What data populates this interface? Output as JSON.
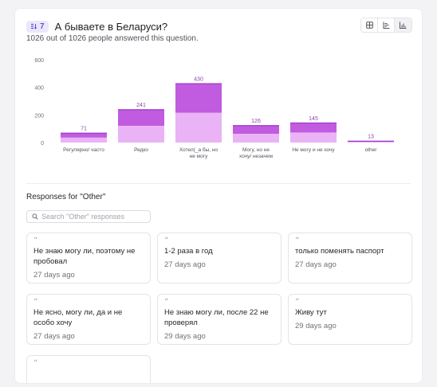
{
  "question": {
    "number": "7",
    "title": "А бываете в Беларуси?",
    "answered_text": "1026 out of 1026 people answered this question."
  },
  "colors": {
    "bar_top": "#c15be0",
    "bar_bottom": "#e9b3f5",
    "bar_edge": "#a23fcf",
    "badge_bg": "#ece8fb",
    "badge_fg": "#6b4fd8"
  },
  "chart_data": {
    "type": "bar",
    "categories": [
      "Регулярно/ часто",
      "Редко",
      "Хотел(_а бы, но не могу",
      "Могу, но не хочу/ незачем",
      "Не могу и не хочу",
      "other"
    ],
    "values": [
      71,
      241,
      430,
      126,
      145,
      13
    ],
    "value_labels": [
      "71",
      "241",
      "430",
      "126",
      "145",
      "13"
    ],
    "yticks": [
      "0",
      "200",
      "400",
      "600"
    ],
    "ylim": [
      0,
      600
    ],
    "grid": false,
    "legend": "none"
  },
  "other_section": {
    "title": "Responses for \"Other\"",
    "search_placeholder": "Search \"Other\" responses",
    "responses": [
      {
        "text": "Не знаю могу ли, поэтому не пробовал",
        "date": "27 days ago"
      },
      {
        "text": "1-2 раза в год",
        "date": "27 days ago"
      },
      {
        "text": "только поменять паспорт",
        "date": "27 days ago"
      },
      {
        "text": "Не ясно, могу ли, да и не особо хочу",
        "date": "27 days ago"
      },
      {
        "text": "Не знаю могу ли, после 22 не проверял",
        "date": "29 days ago"
      },
      {
        "text": "Живу тут",
        "date": "29 days ago"
      },
      {
        "text": "",
        "date": ""
      }
    ]
  },
  "icons": {
    "question_type": "list-sort-icon",
    "view_table": "table-icon",
    "view_horizontal": "horizontal-bars-icon",
    "view_vertical": "vertical-bars-icon",
    "search": "search-icon",
    "quote": "quote-icon"
  }
}
